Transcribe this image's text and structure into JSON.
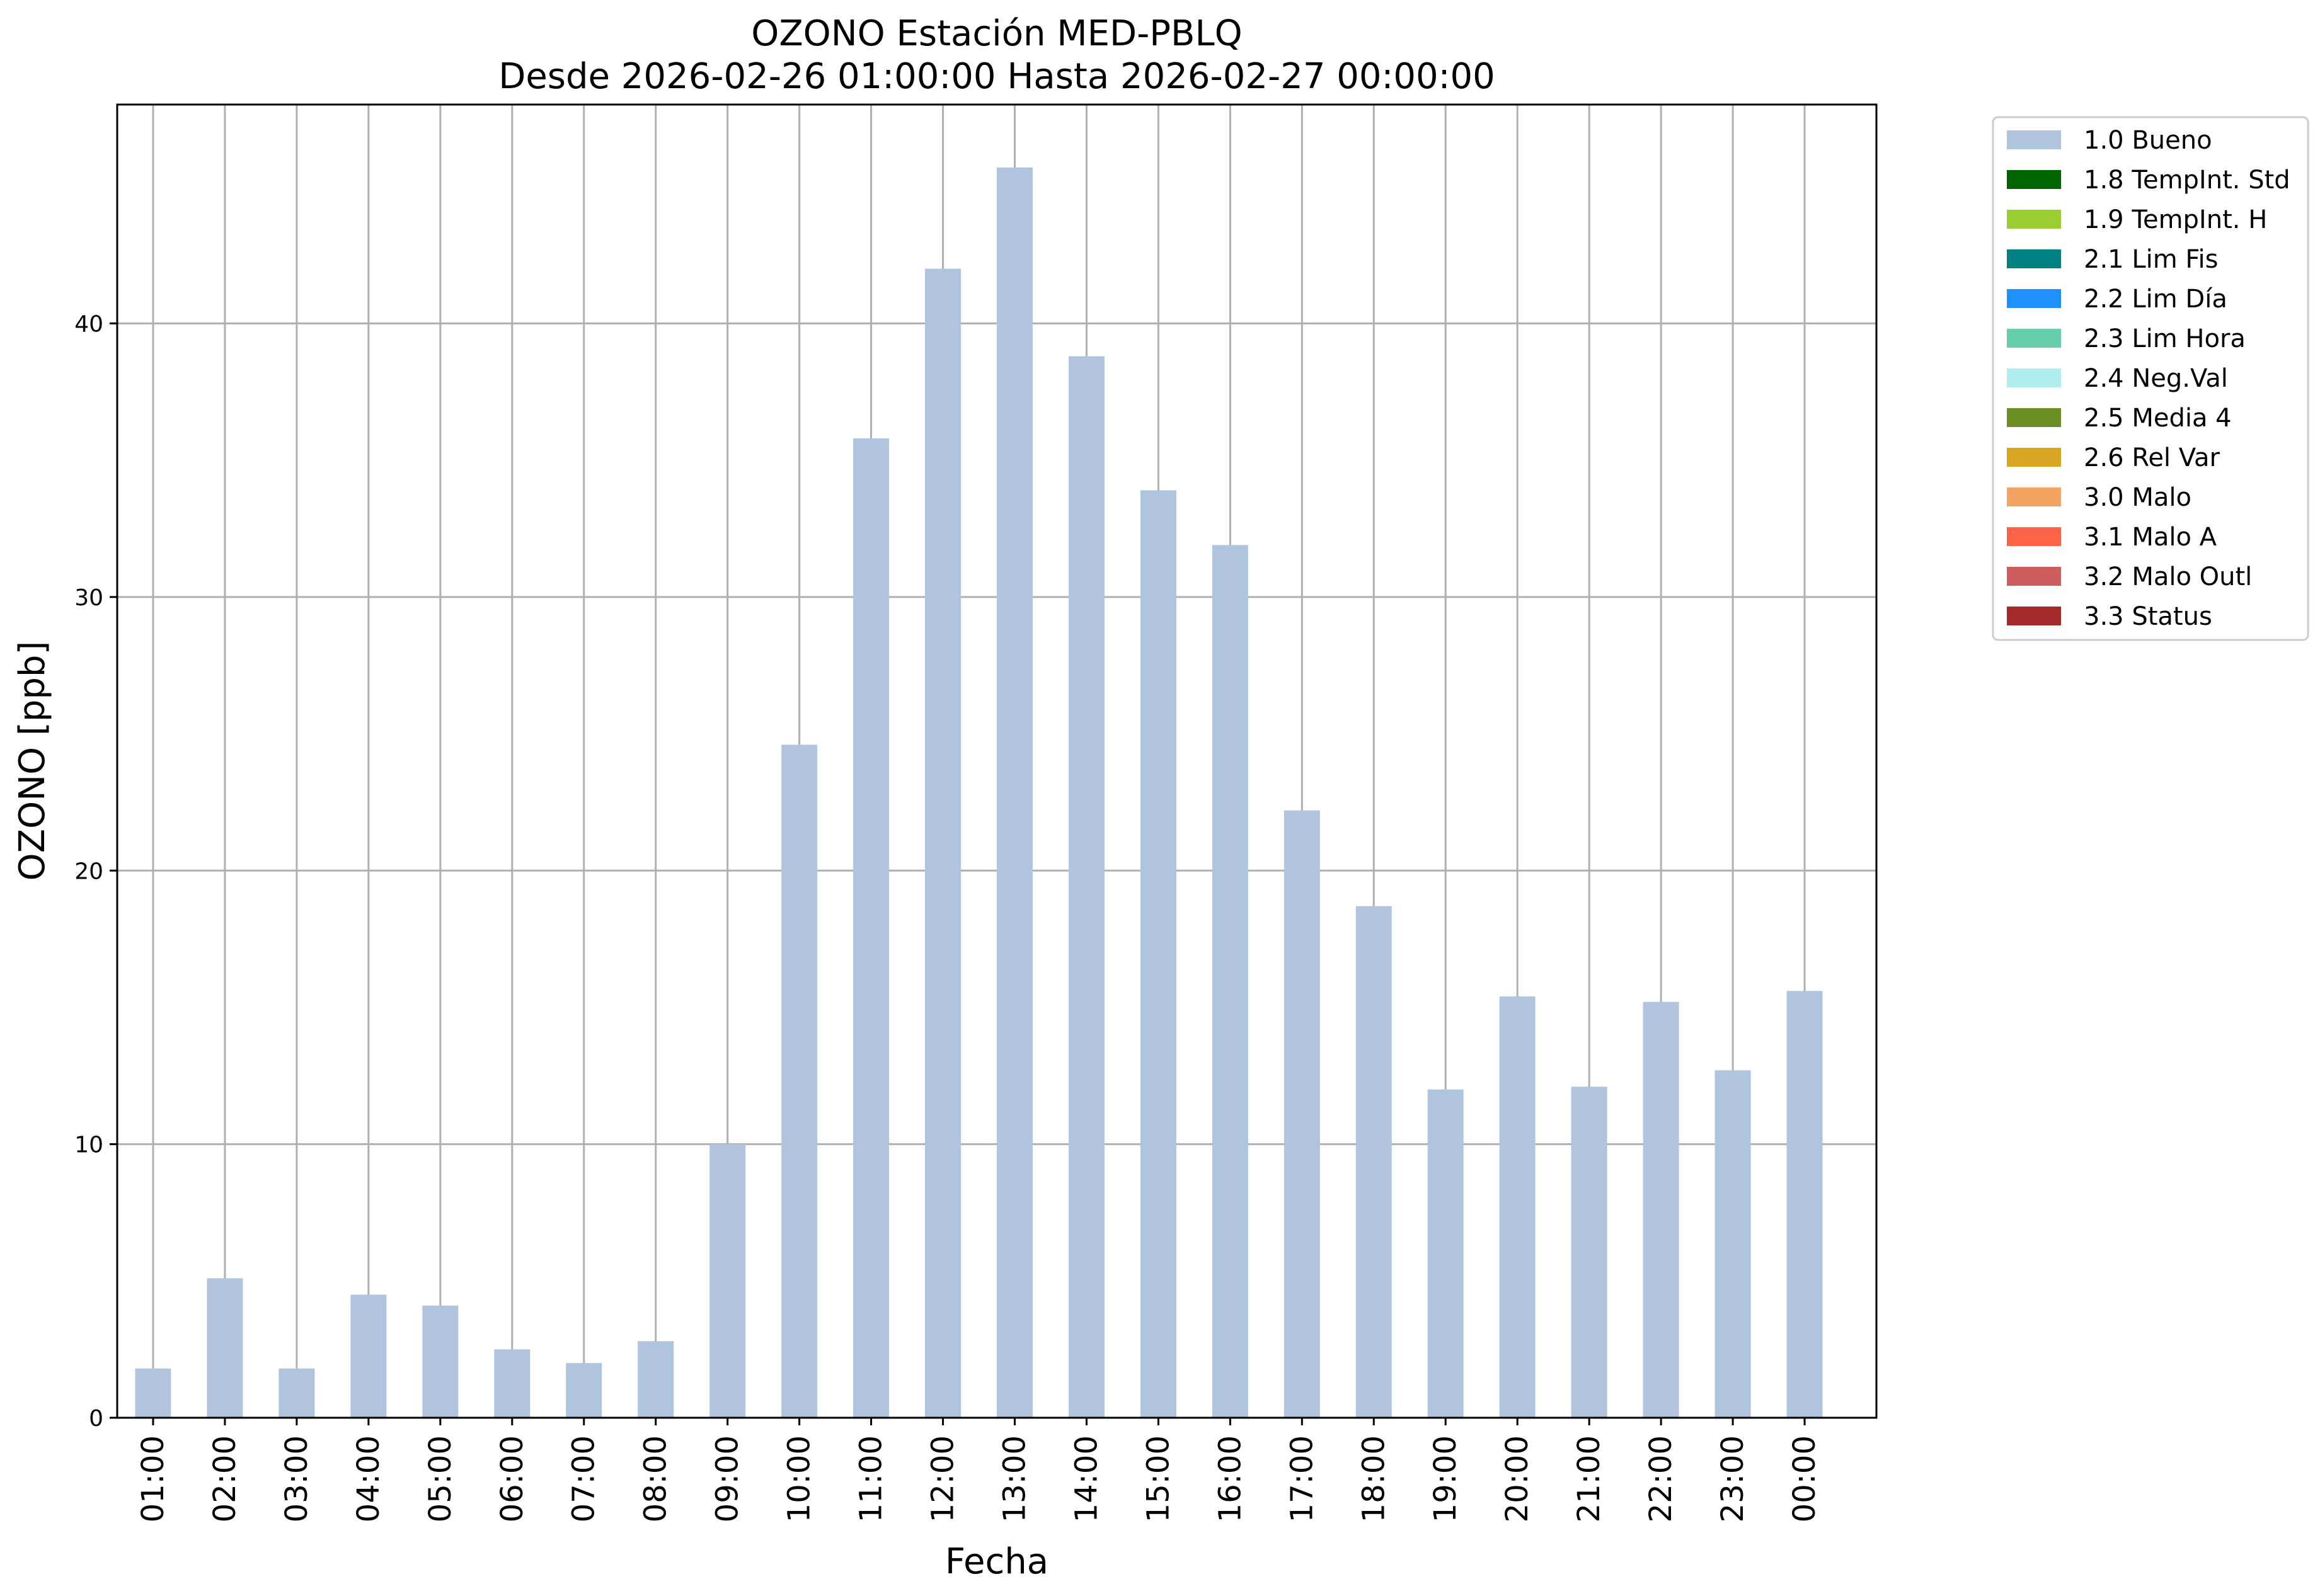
{
  "chart_data": {
    "type": "bar",
    "title": "OZONO Estación MED-PBLQ",
    "subtitle": "Desde 2026-02-26 01:00:00 Hasta 2026-02-27 00:00:00",
    "xlabel": "Fecha",
    "ylabel": "OZONO [ppb]",
    "ylim": [
      0,
      48
    ],
    "yticks": [
      0,
      10,
      20,
      30,
      40
    ],
    "grid": true,
    "legend_position": "outside-top-right",
    "categories": [
      "01:00",
      "02:00",
      "03:00",
      "04:00",
      "05:00",
      "06:00",
      "07:00",
      "08:00",
      "09:00",
      "10:00",
      "11:00",
      "12:00",
      "13:00",
      "14:00",
      "15:00",
      "16:00",
      "17:00",
      "18:00",
      "19:00",
      "20:00",
      "21:00",
      "22:00",
      "23:00",
      "00:00"
    ],
    "series": [
      {
        "name": "1.0 Bueno",
        "color": "#b0c4de",
        "values": [
          1.8,
          5.1,
          1.8,
          4.5,
          4.1,
          2.5,
          2.0,
          2.8,
          10.0,
          24.6,
          35.8,
          42.0,
          45.7,
          38.8,
          33.9,
          31.9,
          22.2,
          18.7,
          12.0,
          15.4,
          12.1,
          15.2,
          12.7,
          15.6
        ]
      }
    ],
    "legend": [
      {
        "label": "1.0 Bueno",
        "color": "#b0c4de"
      },
      {
        "label": "1.8 TempInt. Std",
        "color": "#006400"
      },
      {
        "label": "1.9 TempInt. H",
        "color": "#9acd32"
      },
      {
        "label": "2.1 Lim Fis",
        "color": "#008080"
      },
      {
        "label": "2.2 Lim Día",
        "color": "#1e90ff"
      },
      {
        "label": "2.3 Lim Hora",
        "color": "#66cdaa"
      },
      {
        "label": "2.4 Neg.Val",
        "color": "#afeeee"
      },
      {
        "label": "2.5 Media 4",
        "color": "#6b8e23"
      },
      {
        "label": "2.6 Rel Var",
        "color": "#daa520"
      },
      {
        "label": "3.0 Malo",
        "color": "#f4a460"
      },
      {
        "label": "3.1 Malo A",
        "color": "#ff6347"
      },
      {
        "label": "3.2 Malo Outl",
        "color": "#cd5c5c"
      },
      {
        "label": "3.3 Status",
        "color": "#a52a2a"
      }
    ]
  }
}
